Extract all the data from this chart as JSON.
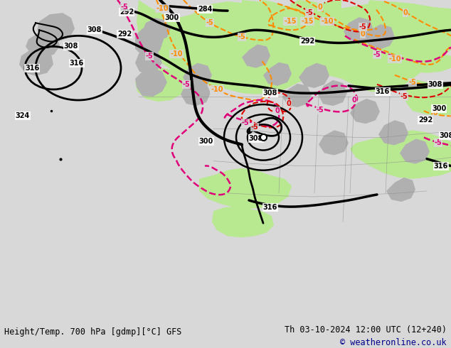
{
  "title_left": "Height/Temp. 700 hPa [gdmp][°C] GFS",
  "title_right": "Th 03-10-2024 12:00 UTC (12+240)",
  "copyright": "© weatheronline.co.uk",
  "bg_color": "#d8d8d8",
  "map_bg": "#d8d8d8",
  "footer_bg": "#c8c8c8",
  "copyright_color": "#00008b",
  "fig_width": 6.34,
  "fig_height": 4.9,
  "dpi": 100,
  "green_color": "#b8e890",
  "gray_terrain": "#b0b0b0",
  "border_color": "#888888"
}
